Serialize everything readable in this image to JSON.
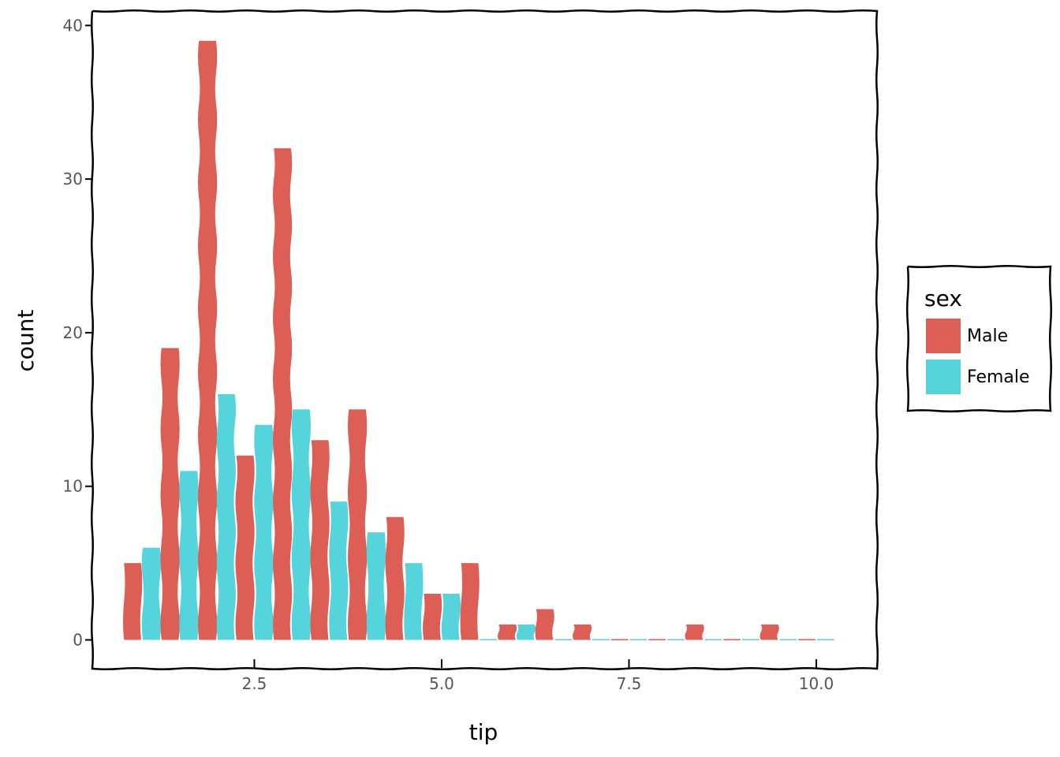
{
  "chart_data": {
    "type": "bar",
    "xlabel": "tip",
    "ylabel": "count",
    "xlim": [
      0.55,
      10.6
    ],
    "ylim": [
      -1.8,
      41
    ],
    "x_ticks": [
      2.5,
      5.0,
      7.5,
      10.0
    ],
    "x_tick_labels": [
      "2.5",
      "5.0",
      "7.5",
      "10.0"
    ],
    "y_ticks": [
      0,
      10,
      20,
      30,
      40
    ],
    "y_tick_labels": [
      "0",
      "10",
      "20",
      "30",
      "40"
    ],
    "bin_centers": [
      1.0,
      1.5,
      2.0,
      2.5,
      3.0,
      3.5,
      4.0,
      4.5,
      5.0,
      5.5,
      6.0,
      6.5,
      7.0,
      7.5,
      8.0,
      8.5,
      9.0,
      9.5,
      10.0
    ],
    "grid": false,
    "legend_position": "right",
    "legend_title": "sex",
    "series": [
      {
        "name": "Male",
        "color": "#DC5E55",
        "values": [
          5,
          19,
          39,
          12,
          32,
          13,
          15,
          8,
          3,
          5,
          1,
          2,
          1,
          0,
          0,
          1,
          0,
          1,
          0
        ]
      },
      {
        "name": "Female",
        "color": "#55D4DC",
        "values": [
          6,
          11,
          16,
          14,
          15,
          9,
          7,
          5,
          3,
          0,
          1,
          0,
          0,
          0,
          0,
          0,
          0,
          0,
          0
        ]
      }
    ]
  }
}
